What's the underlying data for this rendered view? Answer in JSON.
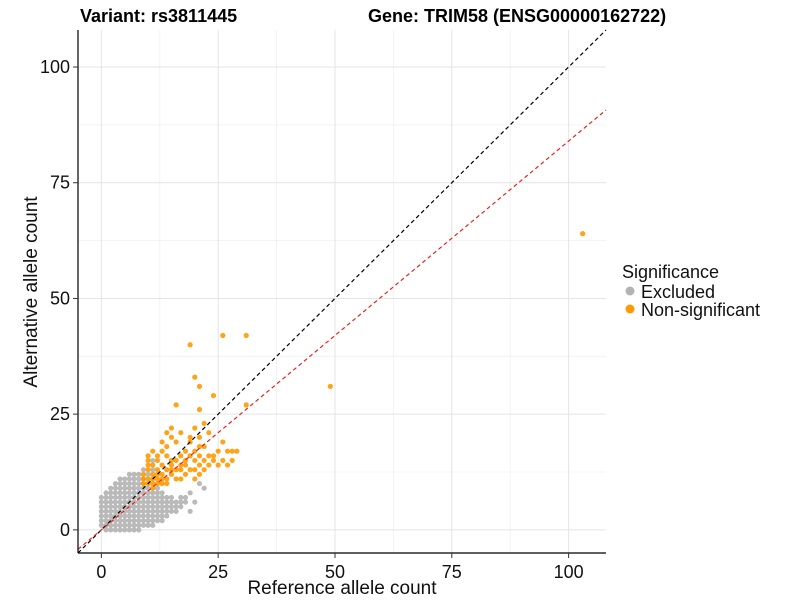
{
  "header": {
    "variant_title": "Variant: rs3811445",
    "gene_title": "Gene: TRIM58 (ENSG00000162722)"
  },
  "legend": {
    "title": "Significance",
    "items": [
      {
        "label": "Excluded",
        "color": "#b3b3b3"
      },
      {
        "label": "Non-significant",
        "color": "#ff9900"
      }
    ]
  },
  "chart_data": {
    "type": "scatter",
    "title": "Variant: rs3811445    Gene: TRIM58 (ENSG00000162722)",
    "xlabel": "Reference allele count",
    "ylabel": "Alternative allele count",
    "xlim": [
      -5,
      108
    ],
    "ylim": [
      -5,
      108
    ],
    "xticks": [
      0,
      25,
      50,
      75,
      100
    ],
    "yticks": [
      0,
      25,
      50,
      75,
      100
    ],
    "grid": true,
    "legend_position": "right",
    "reference_lines": [
      {
        "name": "identity",
        "slope": 1,
        "intercept": 0,
        "color": "#000000",
        "style": "dashed"
      },
      {
        "name": "fit",
        "slope": 0.84,
        "intercept": 0,
        "color": "#e8231f",
        "style": "dashed"
      }
    ],
    "series": [
      {
        "name": "Excluded",
        "color": "#b3b3b3",
        "points": [
          [
            0,
            1
          ],
          [
            0,
            2
          ],
          [
            0,
            3
          ],
          [
            0,
            4
          ],
          [
            0,
            5
          ],
          [
            0,
            6
          ],
          [
            0,
            7
          ],
          [
            1,
            0
          ],
          [
            1,
            1
          ],
          [
            1,
            2
          ],
          [
            1,
            3
          ],
          [
            1,
            4
          ],
          [
            1,
            5
          ],
          [
            1,
            6
          ],
          [
            1,
            7
          ],
          [
            1,
            8
          ],
          [
            2,
            0
          ],
          [
            2,
            1
          ],
          [
            2,
            2
          ],
          [
            2,
            3
          ],
          [
            2,
            4
          ],
          [
            2,
            5
          ],
          [
            2,
            6
          ],
          [
            2,
            7
          ],
          [
            2,
            8
          ],
          [
            2,
            9
          ],
          [
            3,
            0
          ],
          [
            3,
            1
          ],
          [
            3,
            2
          ],
          [
            3,
            3
          ],
          [
            3,
            4
          ],
          [
            3,
            5
          ],
          [
            3,
            6
          ],
          [
            3,
            7
          ],
          [
            3,
            8
          ],
          [
            3,
            9
          ],
          [
            3,
            10
          ],
          [
            4,
            0
          ],
          [
            4,
            1
          ],
          [
            4,
            2
          ],
          [
            4,
            3
          ],
          [
            4,
            4
          ],
          [
            4,
            5
          ],
          [
            4,
            6
          ],
          [
            4,
            7
          ],
          [
            4,
            8
          ],
          [
            4,
            9
          ],
          [
            4,
            10
          ],
          [
            4,
            11
          ],
          [
            5,
            0
          ],
          [
            5,
            1
          ],
          [
            5,
            2
          ],
          [
            5,
            3
          ],
          [
            5,
            4
          ],
          [
            5,
            5
          ],
          [
            5,
            6
          ],
          [
            5,
            7
          ],
          [
            5,
            8
          ],
          [
            5,
            9
          ],
          [
            5,
            10
          ],
          [
            5,
            11
          ],
          [
            6,
            0
          ],
          [
            6,
            1
          ],
          [
            6,
            2
          ],
          [
            6,
            3
          ],
          [
            6,
            4
          ],
          [
            6,
            5
          ],
          [
            6,
            6
          ],
          [
            6,
            7
          ],
          [
            6,
            8
          ],
          [
            6,
            9
          ],
          [
            6,
            10
          ],
          [
            6,
            11
          ],
          [
            6,
            12
          ],
          [
            7,
            0
          ],
          [
            7,
            1
          ],
          [
            7,
            2
          ],
          [
            7,
            3
          ],
          [
            7,
            4
          ],
          [
            7,
            5
          ],
          [
            7,
            6
          ],
          [
            7,
            7
          ],
          [
            7,
            8
          ],
          [
            7,
            9
          ],
          [
            7,
            10
          ],
          [
            7,
            11
          ],
          [
            7,
            12
          ],
          [
            8,
            0
          ],
          [
            8,
            1
          ],
          [
            8,
            2
          ],
          [
            8,
            3
          ],
          [
            8,
            4
          ],
          [
            8,
            5
          ],
          [
            8,
            6
          ],
          [
            8,
            7
          ],
          [
            8,
            8
          ],
          [
            8,
            9
          ],
          [
            8,
            10
          ],
          [
            8,
            11
          ],
          [
            8,
            12
          ],
          [
            9,
            1
          ],
          [
            9,
            2
          ],
          [
            9,
            3
          ],
          [
            9,
            4
          ],
          [
            9,
            5
          ],
          [
            9,
            6
          ],
          [
            9,
            7
          ],
          [
            9,
            8
          ],
          [
            9,
            9
          ],
          [
            9,
            10
          ],
          [
            9,
            11
          ],
          [
            9,
            13
          ],
          [
            10,
            1
          ],
          [
            10,
            2
          ],
          [
            10,
            3
          ],
          [
            10,
            4
          ],
          [
            10,
            5
          ],
          [
            10,
            6
          ],
          [
            10,
            7
          ],
          [
            10,
            8
          ],
          [
            10,
            9
          ],
          [
            10,
            12
          ],
          [
            11,
            1
          ],
          [
            11,
            2
          ],
          [
            11,
            3
          ],
          [
            11,
            4
          ],
          [
            11,
            5
          ],
          [
            11,
            6
          ],
          [
            11,
            7
          ],
          [
            11,
            8
          ],
          [
            11,
            13
          ],
          [
            11,
            15
          ],
          [
            12,
            2
          ],
          [
            12,
            3
          ],
          [
            12,
            4
          ],
          [
            12,
            5
          ],
          [
            12,
            6
          ],
          [
            12,
            7
          ],
          [
            12,
            8
          ],
          [
            12,
            9
          ],
          [
            13,
            2
          ],
          [
            13,
            3
          ],
          [
            13,
            4
          ],
          [
            13,
            5
          ],
          [
            13,
            6
          ],
          [
            13,
            7
          ],
          [
            13,
            8
          ],
          [
            14,
            3
          ],
          [
            14,
            4
          ],
          [
            14,
            5
          ],
          [
            14,
            6
          ],
          [
            14,
            7
          ],
          [
            15,
            4
          ],
          [
            15,
            5
          ],
          [
            15,
            6
          ],
          [
            15,
            7
          ],
          [
            16,
            4
          ],
          [
            16,
            5
          ],
          [
            16,
            6
          ],
          [
            17,
            5
          ],
          [
            17,
            6
          ],
          [
            17,
            7
          ],
          [
            18,
            6
          ],
          [
            18,
            7
          ],
          [
            19,
            4
          ],
          [
            19,
            8
          ],
          [
            20,
            6
          ],
          [
            21,
            10
          ],
          [
            22,
            9
          ]
        ]
      },
      {
        "name": "Non-significant",
        "color": "#ff9900",
        "points": [
          [
            9,
            10
          ],
          [
            9,
            11
          ],
          [
            9,
            12
          ],
          [
            10,
            10
          ],
          [
            10,
            11
          ],
          [
            10,
            13
          ],
          [
            10,
            14
          ],
          [
            10,
            15
          ],
          [
            10,
            16
          ],
          [
            11,
            9
          ],
          [
            11,
            10
          ],
          [
            11,
            11
          ],
          [
            11,
            12
          ],
          [
            11,
            14
          ],
          [
            11,
            17
          ],
          [
            12,
            10
          ],
          [
            12,
            11
          ],
          [
            12,
            12
          ],
          [
            12,
            13
          ],
          [
            12,
            15
          ],
          [
            12,
            16
          ],
          [
            13,
            10
          ],
          [
            13,
            11
          ],
          [
            13,
            12
          ],
          [
            13,
            14
          ],
          [
            13,
            17
          ],
          [
            13,
            19
          ],
          [
            14,
            10
          ],
          [
            14,
            11
          ],
          [
            14,
            13
          ],
          [
            14,
            16
          ],
          [
            14,
            18
          ],
          [
            14,
            21
          ],
          [
            15,
            12
          ],
          [
            15,
            13
          ],
          [
            15,
            14
          ],
          [
            15,
            15
          ],
          [
            15,
            20
          ],
          [
            15,
            22
          ],
          [
            16,
            11
          ],
          [
            16,
            13
          ],
          [
            16,
            15
          ],
          [
            16,
            19
          ],
          [
            16,
            27
          ],
          [
            17,
            11
          ],
          [
            17,
            13
          ],
          [
            17,
            14
          ],
          [
            17,
            16
          ],
          [
            17,
            21
          ],
          [
            18,
            12
          ],
          [
            18,
            14
          ],
          [
            18,
            15
          ],
          [
            18,
            17
          ],
          [
            19,
            13
          ],
          [
            19,
            16
          ],
          [
            19,
            19
          ],
          [
            19,
            20
          ],
          [
            19,
            40
          ],
          [
            20,
            11
          ],
          [
            20,
            13
          ],
          [
            20,
            15
          ],
          [
            20,
            17
          ],
          [
            20,
            22
          ],
          [
            20,
            33
          ],
          [
            21,
            12
          ],
          [
            21,
            14
          ],
          [
            21,
            16
          ],
          [
            21,
            18
          ],
          [
            21,
            20
          ],
          [
            21,
            26
          ],
          [
            21,
            31
          ],
          [
            22,
            13
          ],
          [
            22,
            15
          ],
          [
            22,
            18
          ],
          [
            22,
            23
          ],
          [
            23,
            14
          ],
          [
            23,
            16
          ],
          [
            23,
            21
          ],
          [
            24,
            15
          ],
          [
            24,
            16
          ],
          [
            24,
            29
          ],
          [
            25,
            14
          ],
          [
            25,
            17
          ],
          [
            26,
            15
          ],
          [
            26,
            19
          ],
          [
            26,
            42
          ],
          [
            27,
            14
          ],
          [
            27,
            17
          ],
          [
            28,
            15
          ],
          [
            28,
            17
          ],
          [
            29,
            17
          ],
          [
            31,
            27
          ],
          [
            31,
            42
          ],
          [
            49,
            31
          ],
          [
            103,
            64
          ]
        ]
      }
    ]
  }
}
